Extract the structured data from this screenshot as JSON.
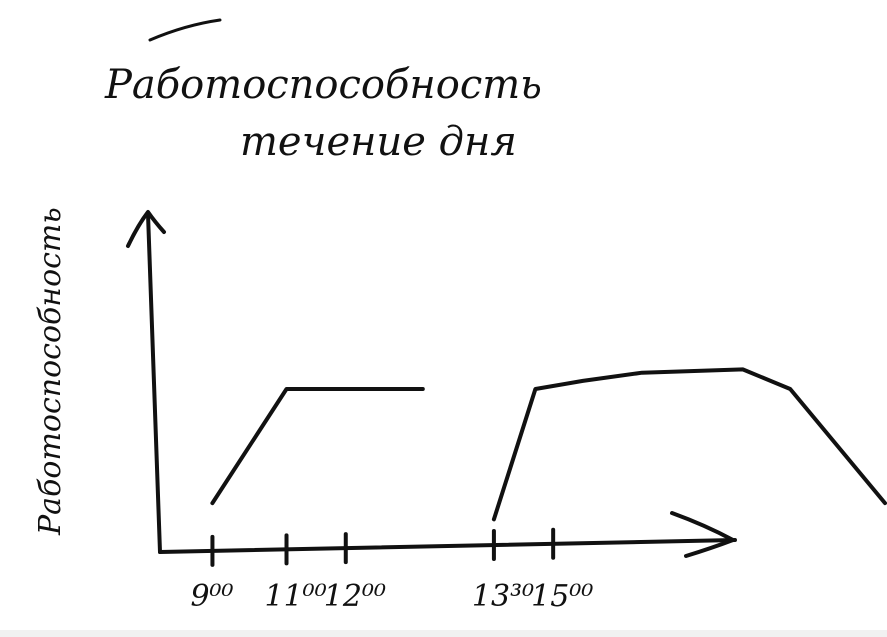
{
  "chart_data": {
    "type": "line",
    "title_lines": [
      "Работоспособность",
      "течение дня"
    ],
    "ylabel": "Работоспособность",
    "xlabel": "",
    "tick_labels": [
      "9⁰⁰",
      "11⁰⁰",
      "12⁰⁰",
      "13³⁰",
      "15⁰⁰"
    ],
    "ylim": [
      0,
      100
    ],
    "segments": [
      {
        "x": [
          8.75,
          10.0,
          11.0,
          12.3
        ],
        "y": [
          30,
          100,
          100,
          100
        ]
      },
      {
        "x": [
          13.5,
          14.2,
          15.0,
          16.0,
          17.7,
          18.5,
          20.1
        ],
        "y": [
          20,
          100,
          105,
          110,
          112,
          100,
          30
        ]
      }
    ]
  },
  "style": {
    "ink": "#111111",
    "background": "#ffffff"
  }
}
